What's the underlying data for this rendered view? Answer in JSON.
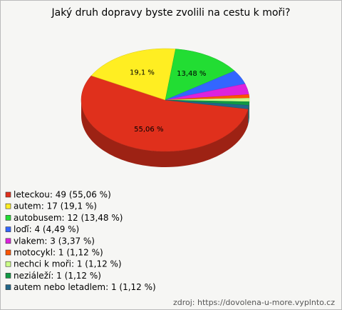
{
  "chart_data": {
    "type": "pie",
    "title": "Jaký druh dopravy byste zvolili na cestu k moři?",
    "categories": [
      "leteckou: 49 (55,06 %)",
      "autem: 17 (19,1 %)",
      "autobusem: 12 (13,48 %)",
      "loďí: 4 (4,49 %)",
      "vlakem: 3 (3,37 %)",
      "motocykl: 1 (1,12 %)",
      "nechci k moři: 1 (1,12 %)",
      "neziáleží: 1 (1,12 %)",
      "autem nebo letadlem: 1 (1,12 %)"
    ],
    "values": [
      55.06,
      19.1,
      13.48,
      4.49,
      3.37,
      1.12,
      1.12,
      1.12,
      1.12
    ],
    "value_labels": [
      "55,06 %",
      "19,1 %",
      "13,48 %",
      null,
      null,
      null,
      null,
      null,
      null
    ],
    "colors": [
      "#e0301c",
      "#ffee22",
      "#22dd33",
      "#3366ff",
      "#dd22dd",
      "#ff5500",
      "#ccff88",
      "#119944",
      "#226688"
    ],
    "source": "zdroj: https://dovolena-u-more.vyplnto.cz"
  }
}
